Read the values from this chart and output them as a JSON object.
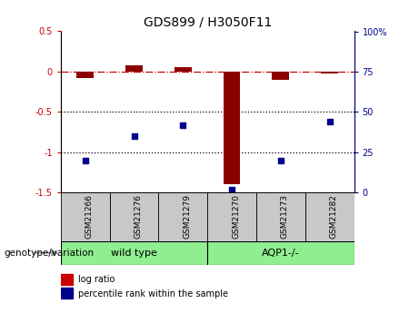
{
  "title": "GDS899 / H3050F11",
  "samples": [
    "GSM21266",
    "GSM21276",
    "GSM21279",
    "GSM21270",
    "GSM21273",
    "GSM21282"
  ],
  "log_ratio": [
    -0.08,
    0.08,
    0.05,
    -1.4,
    -0.1,
    -0.02
  ],
  "percentile_rank": [
    20,
    35,
    42,
    2,
    20,
    44
  ],
  "ylim_left": [
    -1.5,
    0.5
  ],
  "ylim_right": [
    0,
    100
  ],
  "left_ticks": [
    0.5,
    0.0,
    -0.5,
    -1.0,
    -1.5
  ],
  "right_ticks": [
    100,
    75,
    50,
    25,
    0
  ],
  "bar_color": "#8B0000",
  "dot_color": "#00008B",
  "hline_color": "#CC0000",
  "dotted_line_color": "black",
  "x_positions": [
    0,
    1,
    2,
    3,
    4,
    5
  ],
  "bar_width": 0.35,
  "group_wt_label": "wild type",
  "group_aq_label": "AQP1-/-",
  "group_color": "#90EE90",
  "sample_box_color": "#C8C8C8",
  "genotype_label": "genotype/variation",
  "legend_red": "log ratio",
  "legend_blue": "percentile rank within the sample",
  "title_fontsize": 10,
  "tick_fontsize": 7,
  "label_fontsize": 7.5,
  "group_fontsize": 8,
  "legend_fontsize": 7
}
